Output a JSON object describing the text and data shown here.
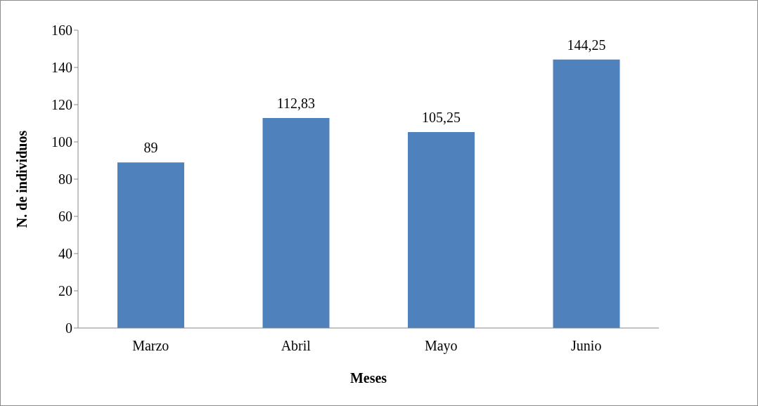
{
  "chart_data": {
    "type": "bar",
    "xlabel": "Meses",
    "ylabel": "N. de individuos",
    "categories": [
      "Marzo",
      "Abril",
      "Mayo",
      "Junio"
    ],
    "values": [
      89,
      112.83,
      105.25,
      144.25
    ],
    "value_labels": [
      "89",
      "112,83",
      "105,25",
      "144,25"
    ],
    "color": "#4f81bd",
    "ylim": [
      0,
      160
    ],
    "yticks": [
      0,
      20,
      40,
      60,
      80,
      100,
      120,
      140,
      160
    ],
    "grid": false,
    "legend": false
  }
}
